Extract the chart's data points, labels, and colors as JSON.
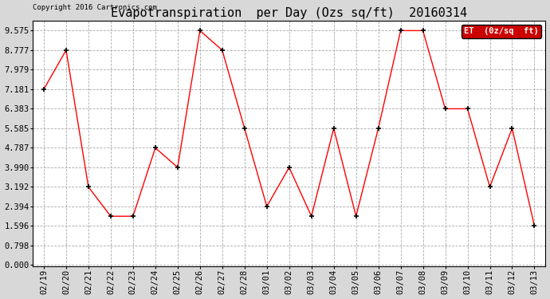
{
  "title": "Evapotranspiration  per Day (Ozs sq/ft)  20160314",
  "copyright": "Copyright 2016 Cartronics.com",
  "legend_label": "ET  (0z/sq  ft)",
  "x_labels": [
    "02/19",
    "02/20",
    "02/21",
    "02/22",
    "02/23",
    "02/24",
    "02/25",
    "02/26",
    "02/27",
    "02/28",
    "03/01",
    "03/02",
    "03/03",
    "03/04",
    "03/05",
    "03/06",
    "03/07",
    "03/08",
    "03/09",
    "03/10",
    "03/11",
    "03/12",
    "03/13"
  ],
  "y_values": [
    7.181,
    8.777,
    3.192,
    1.995,
    1.995,
    4.787,
    3.99,
    9.575,
    8.777,
    5.585,
    2.394,
    3.99,
    1.995,
    5.585,
    1.995,
    5.585,
    9.575,
    9.575,
    6.383,
    6.383,
    3.192,
    5.585,
    1.596
  ],
  "y_ticks": [
    0.0,
    0.798,
    1.596,
    2.394,
    3.192,
    3.99,
    4.787,
    5.585,
    6.383,
    7.181,
    7.979,
    8.777,
    9.575
  ],
  "y_min": 0.0,
  "y_max": 9.575,
  "line_color": "red",
  "marker_color": "black",
  "marker": "+",
  "plot_bg_color": "#ffffff",
  "fig_bg_color": "#d8d8d8",
  "grid_color": "#aaaaaa",
  "title_fontsize": 11,
  "tick_fontsize": 7.5,
  "legend_bg": "#cc0000",
  "legend_fg": "white"
}
